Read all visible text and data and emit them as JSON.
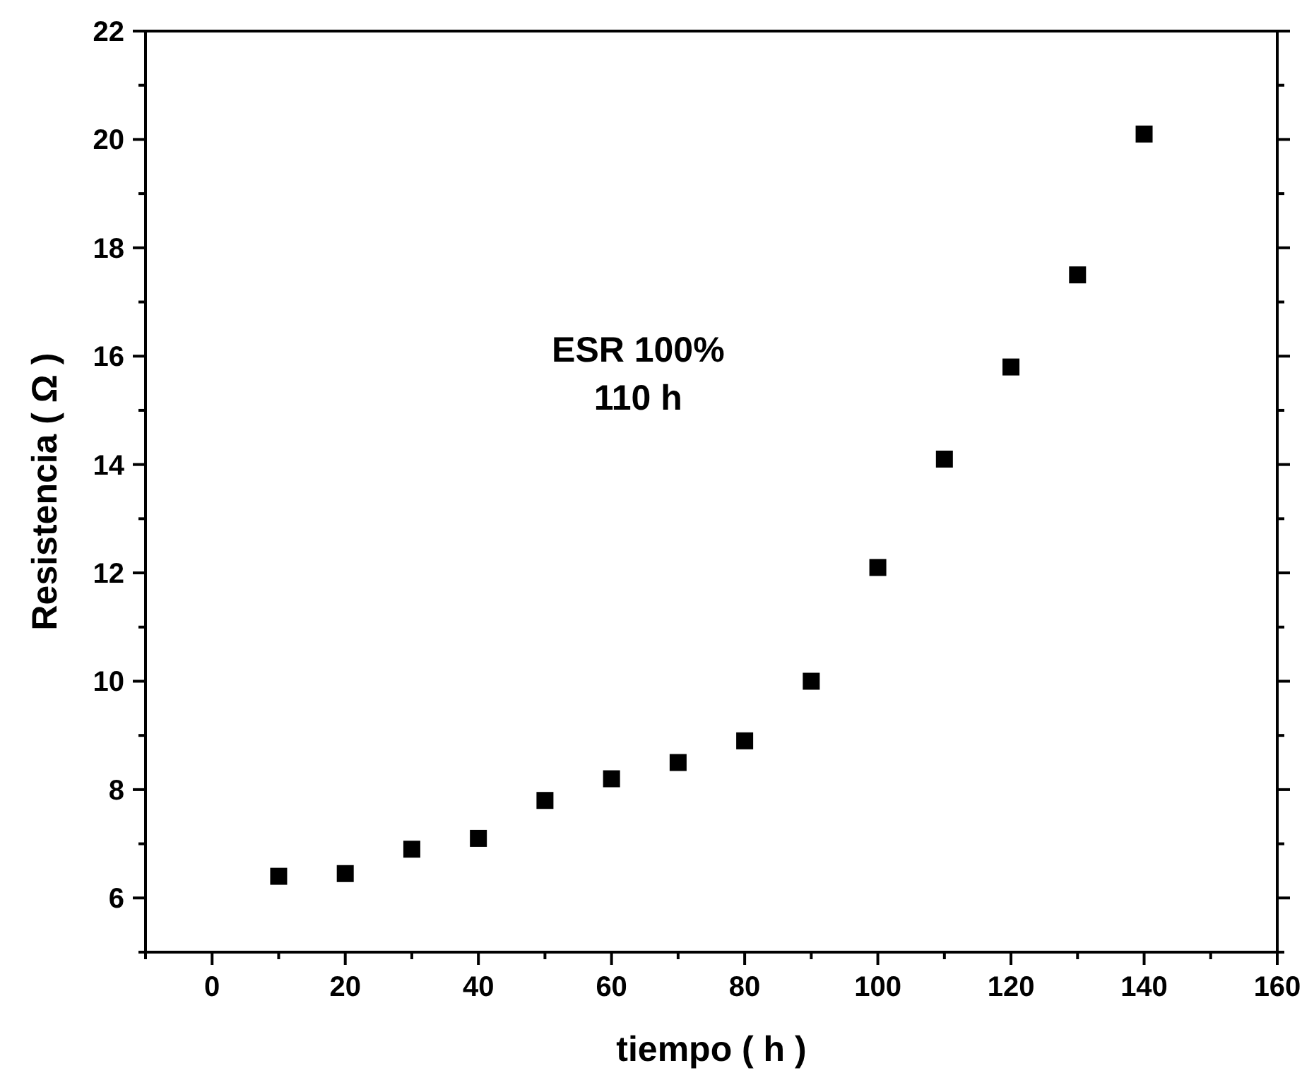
{
  "chart_data": {
    "type": "scatter",
    "xlabel": "tiempo ( h )",
    "ylabel": "Resistencia ( Ω )",
    "annotations": [
      "ESR 100%\n110 h"
    ],
    "x": [
      10,
      20,
      30,
      40,
      50,
      60,
      70,
      80,
      90,
      100,
      110,
      120,
      130,
      140
    ],
    "series": [
      {
        "color": "#000000",
        "values": [
          6.4,
          6.45,
          6.9,
          7.1,
          7.8,
          8.2,
          8.5,
          8.9,
          10.0,
          12.1,
          14.1,
          15.8,
          17.5,
          20.1
        ]
      }
    ],
    "xlim": [
      -10,
      160
    ],
    "xticks": [
      0,
      20,
      40,
      60,
      80,
      100,
      120,
      140,
      160
    ],
    "ylim": [
      5,
      22
    ],
    "yticks": [
      6,
      8,
      10,
      12,
      14,
      16,
      18,
      20,
      22
    ],
    "marker": "square",
    "grid": false
  }
}
